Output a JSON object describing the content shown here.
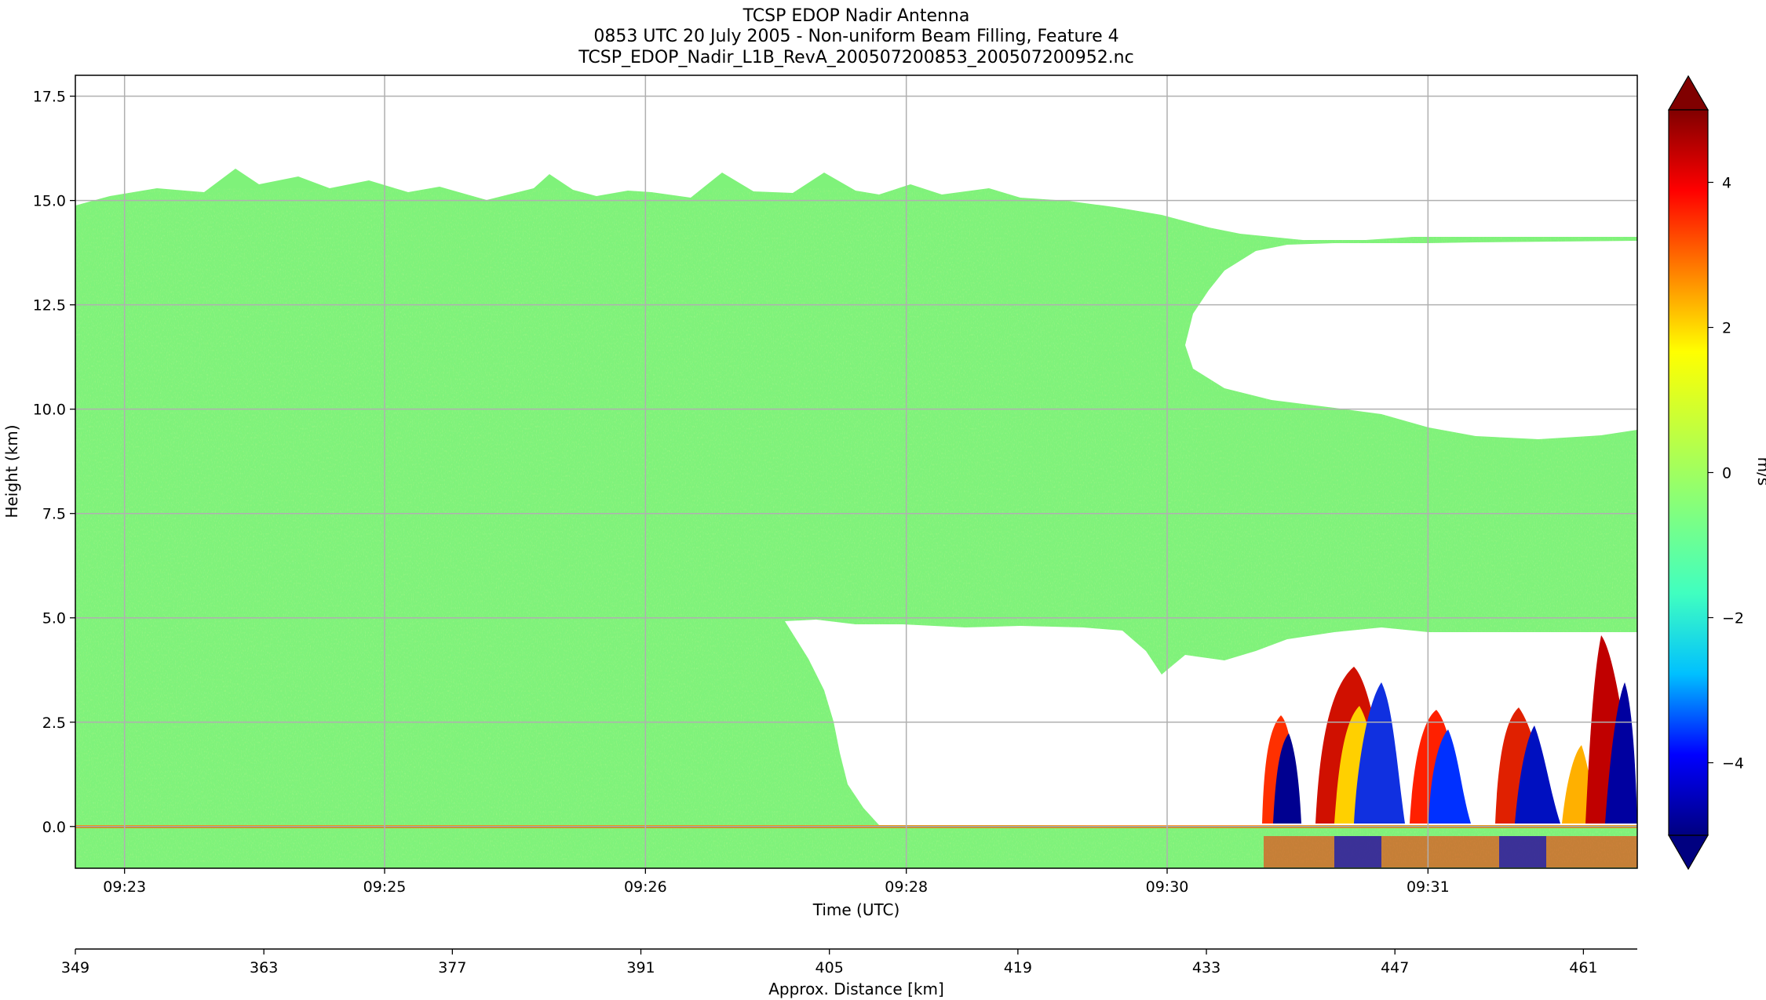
{
  "figure": {
    "title_lines": [
      "TCSP EDOP Nadir Antenna",
      "0853 UTC 20 July 2005 - Non-uniform Beam Filling, Feature 4",
      "TCSP_EDOP_Nadir_L1B_RevA_200507200853_200507200952.nc"
    ]
  },
  "chart_data": {
    "type": "heatmap",
    "title": "TCSP EDOP Nadir Antenna\n0853 UTC 20 July 2005 - Non-uniform Beam Filling, Feature 4\nTCSP_EDOP_Nadir_L1B_RevA_200507200853_200507200952.nc",
    "xlabel": "Time (UTC)",
    "ylabel": "Height (km)",
    "x_ticks": [
      "09:23",
      "09:25",
      "09:26",
      "09:28",
      "09:30",
      "09:31"
    ],
    "ylim": [
      -1.0,
      18.0
    ],
    "y_ticks": [
      "0.0",
      "2.5",
      "5.0",
      "7.5",
      "10.0",
      "12.5",
      "15.0",
      "17.5"
    ],
    "grid": true,
    "secondary_x": {
      "label": "Approx. Distance [km]",
      "range": [
        349,
        465
      ],
      "ticks": [
        "349",
        "363",
        "377",
        "391",
        "405",
        "419",
        "433",
        "447",
        "461"
      ]
    },
    "colorbar": {
      "label": "m/s",
      "range": [
        -5,
        5
      ],
      "ticks": [
        "4",
        "2",
        "0",
        "−2",
        "−4"
      ],
      "colormap": "jet",
      "extend": "both",
      "colors": [
        "#000080",
        "#0000ff",
        "#00c0ff",
        "#40ffc0",
        "#80ff80",
        "#c0ff40",
        "#ffff00",
        "#ff8000",
        "#ff0000",
        "#800000"
      ]
    },
    "background_velocity_color": "#7ff27a",
    "features": [
      {
        "label": "upper echo top",
        "height_km": 15.2
      },
      {
        "label": "weak-echo (white) gap",
        "height_km_range": [
          0.1,
          5.0
        ]
      },
      {
        "label": "convective cells",
        "count": 6,
        "velocity_range_m_s": [
          -5,
          5
        ]
      }
    ]
  }
}
